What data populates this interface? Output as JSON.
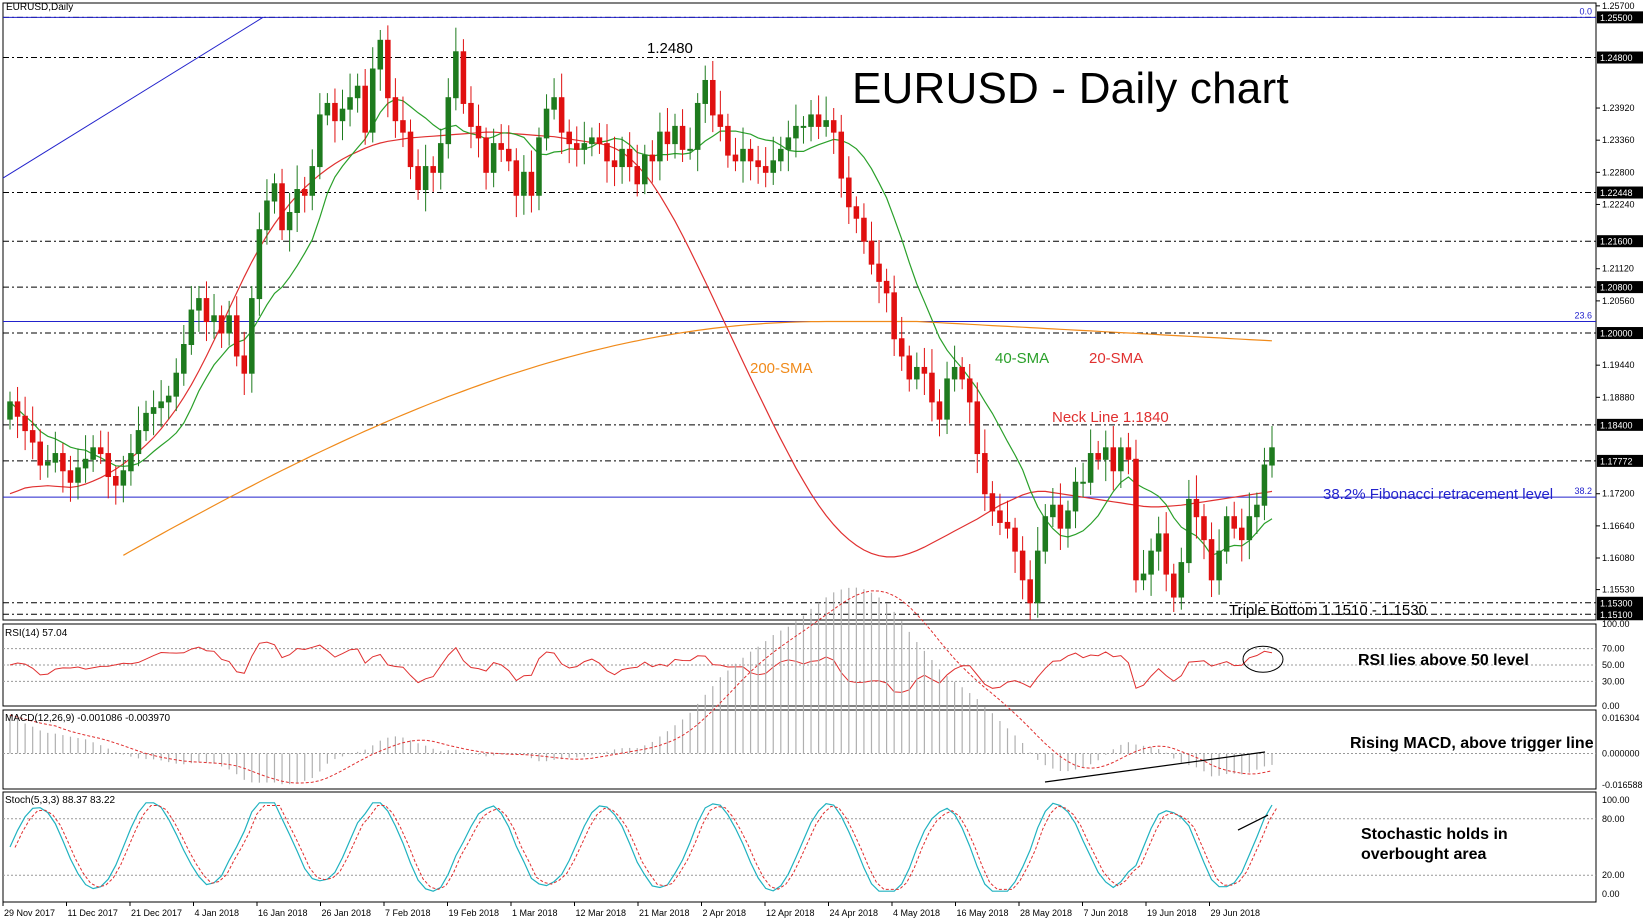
{
  "window": {
    "symbol_label": "EURUSD,Daily"
  },
  "title": "EURUSD - Daily chart",
  "colors": {
    "bull": "#1e7b1e",
    "bear": "#e01010",
    "sma20": "#e03030",
    "sma40": "#2aa02a",
    "sma200": "#f08a1a",
    "fib": "#2222cc",
    "rsi": "#e03030",
    "stoch_main": "#20b2c0",
    "stoch_signal": "#e03030",
    "macd_hist": "#b0b0b0",
    "macd_signal": "#e03030",
    "grid_level": "#000000"
  },
  "chart_data": {
    "type": "candlestick",
    "x_ticks": [
      "29 Nov 2017",
      "11 Dec 2017",
      "21 Dec 2017",
      "4 Jan 2018",
      "16 Jan 2018",
      "26 Jan 2018",
      "7 Feb 2018",
      "19 Feb 2018",
      "1 Mar 2018",
      "12 Mar 2018",
      "21 Mar 2018",
      "2 Apr 2018",
      "12 Apr 2018",
      "24 Apr 2018",
      "4 May 2018",
      "16 May 2018",
      "28 May 2018",
      "7 Jun 2018",
      "19 Jun 2018",
      "29 Jun 2018"
    ],
    "y_ticks": [
      "1.25700",
      "1.25500",
      "1.24800",
      "1.23920",
      "1.23360",
      "1.22800",
      "1.22448",
      "1.22240",
      "1.21600",
      "1.21120",
      "1.20800",
      "1.20560",
      "1.20000",
      "1.19440",
      "1.18880",
      "1.18400",
      "1.17772",
      "1.17200",
      "1.16640",
      "1.16080",
      "1.15530",
      "1.15300",
      "1.15100"
    ],
    "ylim": [
      1.15,
      1.2575
    ],
    "closes": [
      1.188,
      1.1855,
      1.183,
      1.181,
      1.177,
      1.1775,
      1.179,
      1.176,
      1.174,
      1.1765,
      1.178,
      1.18,
      1.179,
      1.175,
      1.1735,
      1.176,
      1.179,
      1.183,
      1.186,
      1.187,
      1.188,
      1.189,
      1.193,
      1.198,
      1.204,
      1.206,
      1.202,
      1.203,
      1.2,
      1.203,
      1.196,
      1.193,
      1.206,
      1.218,
      1.223,
      1.226,
      1.218,
      1.221,
      1.225,
      1.224,
      1.229,
      1.238,
      1.24,
      1.237,
      1.239,
      1.241,
      1.243,
      1.235,
      1.246,
      1.251,
      1.241,
      1.237,
      1.235,
      1.229,
      1.225,
      1.229,
      1.228,
      1.233,
      1.241,
      1.249,
      1.24,
      1.236,
      1.234,
      1.228,
      1.233,
      1.232,
      1.23,
      1.224,
      1.228,
      1.224,
      1.234,
      1.239,
      1.241,
      1.235,
      1.233,
      1.232,
      1.233,
      1.234,
      1.233,
      1.23,
      1.229,
      1.232,
      1.229,
      1.226,
      1.231,
      1.23,
      1.235,
      1.233,
      1.236,
      1.232,
      1.232,
      1.24,
      1.244,
      1.238,
      1.236,
      1.231,
      1.23,
      1.232,
      1.23,
      1.229,
      1.228,
      1.23,
      1.232,
      1.234,
      1.236,
      1.236,
      1.238,
      1.236,
      1.237,
      1.235,
      1.227,
      1.222,
      1.22,
      1.216,
      1.212,
      1.209,
      1.207,
      1.199,
      1.196,
      1.192,
      1.194,
      1.193,
      1.188,
      1.185,
      1.192,
      1.194,
      1.192,
      1.188,
      1.179,
      1.172,
      1.169,
      1.167,
      1.166,
      1.162,
      1.157,
      1.153,
      1.162,
      1.168,
      1.17,
      1.166,
      1.169,
      1.174,
      1.174,
      1.179,
      1.178,
      1.18,
      1.176,
      1.18,
      1.178,
      1.157,
      1.158,
      1.162,
      1.165,
      1.158,
      1.154,
      1.16,
      1.171,
      1.168,
      1.164,
      1.157,
      1.162,
      1.168,
      1.166,
      1.164,
      1.168,
      1.17,
      1.177,
      1.18
    ],
    "sma_20": [
      1.172,
      1.1725,
      1.173,
      1.1732,
      1.1733,
      1.1734,
      1.1733,
      1.1732,
      1.1731,
      1.1733,
      1.1737,
      1.1742,
      1.1748,
      1.1755,
      1.1763,
      1.1772,
      1.1782,
      1.1793,
      1.1805,
      1.1818,
      1.1833,
      1.185,
      1.1868,
      1.1888,
      1.191,
      1.1934,
      1.196,
      1.1987,
      1.2014,
      1.2042,
      1.207,
      1.2098,
      1.2124,
      1.2148,
      1.217,
      1.219,
      1.2208,
      1.2225,
      1.224,
      1.2253,
      1.2265,
      1.2276,
      1.2286,
      1.2295,
      1.2303,
      1.231,
      1.2316,
      1.2322,
      1.2327,
      1.2331,
      1.2334,
      1.2336,
      1.2338,
      1.234,
      1.2341,
      1.2342,
      1.2343,
      1.2344,
      1.2345,
      1.2346,
      1.2347,
      1.2348,
      1.2349,
      1.235,
      1.235,
      1.2349,
      1.2348,
      1.2347,
      1.2346,
      1.2345,
      1.2344,
      1.2343,
      1.2342,
      1.234,
      1.2338,
      1.2336,
      1.2334,
      1.2332,
      1.233,
      1.2327,
      1.2322,
      1.2315,
      1.2305,
      1.2292,
      1.2277,
      1.226,
      1.224,
      1.2218,
      1.2195,
      1.217,
      1.2144,
      1.2117,
      1.209,
      1.2062,
      1.2034,
      1.2006,
      1.1978,
      1.195,
      1.1922,
      1.1895,
      1.1868,
      1.1841,
      1.1815,
      1.179,
      1.1765,
      1.1742,
      1.172,
      1.17,
      1.1682,
      1.1666,
      1.1652,
      1.164,
      1.163,
      1.1622,
      1.1616,
      1.1612,
      1.161,
      1.161,
      1.1612,
      1.1616,
      1.1621,
      1.1627,
      1.1634,
      1.1641,
      1.1648,
      1.1655,
      1.1662,
      1.1669,
      1.1676,
      1.1684,
      1.1692,
      1.17,
      1.1706,
      1.1712,
      1.1718,
      1.1722,
      1.1724,
      1.1724,
      1.1722,
      1.172,
      1.1718,
      1.1716,
      1.1714,
      1.1712,
      1.171,
      1.1708,
      1.1706,
      1.1704,
      1.1702,
      1.17,
      1.1698,
      1.1697,
      1.1697,
      1.1698,
      1.1699,
      1.17,
      1.1702,
      1.1704,
      1.1706,
      1.1708,
      1.171,
      1.1712,
      1.1714,
      1.1716,
      1.1718,
      1.172,
      1.1722,
      1.1724
    ],
    "annotations": [
      "1.2480",
      "Neck Line 1.1840",
      "38.2% Fibonacci retracement level",
      "Triple Bottom 1.1510 - 1.1530",
      "200-SMA",
      "40-SMA",
      "20-SMA"
    ],
    "fib_labels": [
      "0.0",
      "23.6",
      "38.2"
    ],
    "level_labels": [
      "1.25500",
      "1.24800",
      "1.22448",
      "1.21600",
      "1.20800",
      "1.20000",
      "1.18400",
      "1.17772",
      "1.15300",
      "1.15100"
    ],
    "rsi": {
      "label": "RSI(14) 57.04",
      "levels": [
        "100.00",
        "70.00",
        "50.00",
        "30.00",
        "0.00"
      ],
      "comment": "RSI lies above 50 level"
    },
    "macd": {
      "label": "MACD(12,26,9) -0.001086 -0.003970",
      "levels": [
        "0.016304",
        "0.000000",
        "-0.016588"
      ],
      "comment": "Rising MACD, above trigger line"
    },
    "stoch": {
      "label": "Stoch(5,3,3) 88.37 83.22",
      "levels": [
        "100.00",
        "80.00",
        "20.00",
        "0.00"
      ],
      "comment_line1": "Stochastic holds in",
      "comment_line2": "overbought area"
    }
  }
}
